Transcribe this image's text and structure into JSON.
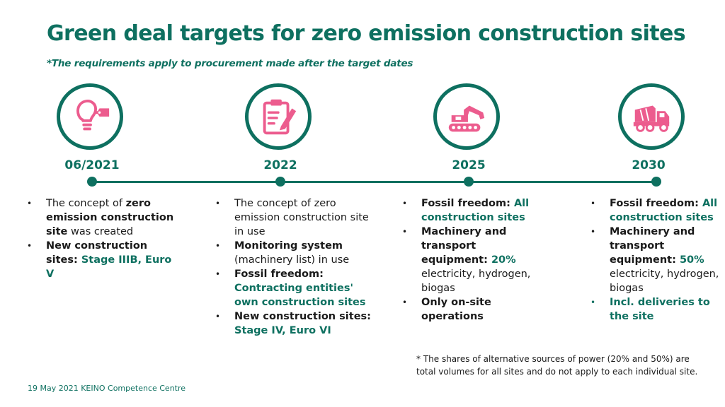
{
  "title": "Green deal targets for zero emission construction sites",
  "subtitle": "*The requirements apply to procurement made after the target dates",
  "milestones": [
    {
      "year": "06/2021",
      "icon": "lightbulb-tag-icon",
      "items": [
        {
          "t1": "The concept of ",
          "t2": "zero emission construction site",
          "t3": " was created"
        },
        {
          "t1": "New construction sites: ",
          "t2": "Stage IIIB, Euro V"
        }
      ]
    },
    {
      "year": "2022",
      "icon": "clipboard-pencil-icon",
      "items": [
        {
          "t1": "The concept of zero emission construction site in use"
        },
        {
          "t1": "Monitoring system",
          "t2": " (machinery list) in use"
        },
        {
          "t1": "Fossil freedom: ",
          "t2": "Contracting entities' own construction sites"
        },
        {
          "t1": "New construction sites: ",
          "t2": "Stage IV, Euro VI"
        }
      ]
    },
    {
      "year": "2025",
      "icon": "excavator-icon",
      "items": [
        {
          "t1": "Fossil freedom: ",
          "t2": "All construction sites"
        },
        {
          "t1": "Machinery and transport equipment: ",
          "t2": "20%",
          "t3": " electricity, hydrogen, biogas"
        },
        {
          "t1": "Only on-site operations"
        }
      ]
    },
    {
      "year": "2030",
      "icon": "cement-truck-icon",
      "items": [
        {
          "t1": "Fossil freedom: ",
          "t2": "All construction sites"
        },
        {
          "t1": "Machinery and transport equipment: ",
          "t2": "50%",
          "t3": " electricity, hydrogen, biogas"
        },
        {
          "t1": "Incl. deliveries to the site"
        }
      ]
    }
  ],
  "footnote": "* The shares of alternative sources of power (20% and 50%) are total volumes for all sites and do not apply to each individual site.",
  "footer": "19 May 2021 KEINO Competence Centre",
  "colors": {
    "accent": "#0e7060",
    "icon": "#ec5c8e"
  }
}
